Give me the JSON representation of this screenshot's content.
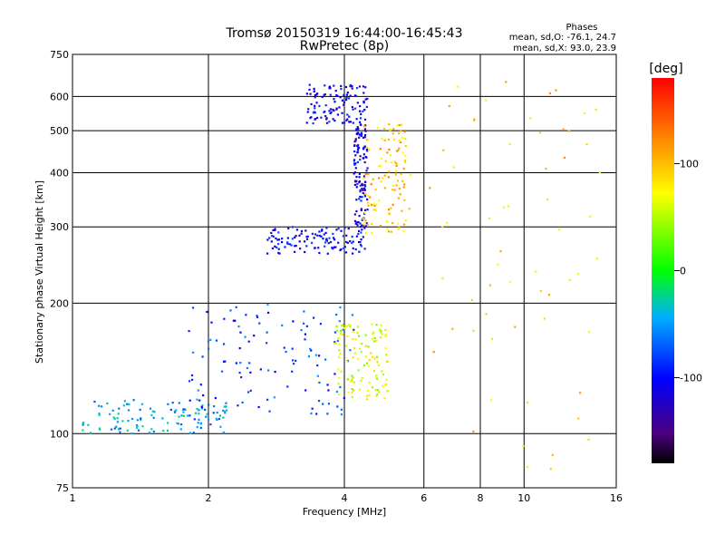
{
  "chart_data": {
    "type": "scatter",
    "title": "Tromsø 20150319 16:44:00-16:45:43",
    "subtitle": "RwPretec (8p)",
    "phases_title": "Phases",
    "phases_line1": "mean, sd,O: -76.1, 24.7",
    "phases_line2": "mean, sd,X:  93.0, 23.9",
    "xlabel": "Frequency [MHz]",
    "ylabel": "Stationary phase Virtual Height [km]",
    "x_scale": "log",
    "y_scale": "log",
    "xlim": [
      1,
      16
    ],
    "ylim": [
      75,
      750
    ],
    "x_ticks": [
      1,
      2,
      4,
      6,
      8,
      10,
      16
    ],
    "y_ticks": [
      75,
      100,
      200,
      300,
      400,
      500,
      600,
      750
    ],
    "grid": true,
    "colorbar": {
      "label": "[deg]",
      "ticks": [
        100,
        0,
        -100
      ],
      "range": [
        -180,
        180
      ]
    },
    "point_groups": [
      {
        "name": "O-trace lower F",
        "freq_range": [
          1.05,
          2.2
        ],
        "height_range": [
          100,
          120
        ],
        "phase": -50
      },
      {
        "name": "O-trace scatter",
        "freq_range": [
          1.8,
          4.2
        ],
        "height_range": [
          110,
          200
        ],
        "phase": -80
      },
      {
        "name": "O-trace F2",
        "freq_range": [
          2.7,
          4.5
        ],
        "height_range": [
          260,
          300
        ],
        "phase": -100
      },
      {
        "name": "O-trace cusp",
        "freq_range": [
          4.2,
          4.5
        ],
        "height_range": [
          300,
          520
        ],
        "phase": -110
      },
      {
        "name": "O-trace upper",
        "freq_range": [
          3.3,
          4.5
        ],
        "height_range": [
          520,
          640
        ],
        "phase": -105
      },
      {
        "name": "X-trace",
        "freq_range": [
          4.4,
          5.6
        ],
        "height_range": [
          290,
          520
        ],
        "phase": 95
      },
      {
        "name": "X-trace lower",
        "freq_range": [
          3.8,
          5.0
        ],
        "height_range": [
          120,
          180
        ],
        "phase": 60
      },
      {
        "name": "Sparse noise",
        "freq_range": [
          6,
          15
        ],
        "height_range": [
          80,
          680
        ],
        "phase": 90
      }
    ]
  }
}
